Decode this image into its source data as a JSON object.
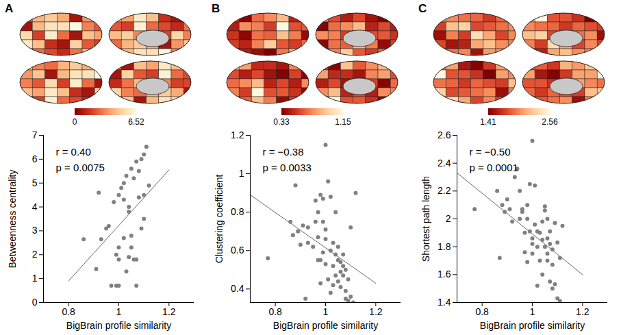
{
  "chart_data": [
    {
      "type": "scatter",
      "panel": "A",
      "x_label": "BigBrain profile similarity",
      "y_label": "Betweenness centrality",
      "xlim": [
        0.7,
        1.3
      ],
      "xticks": [
        0.8,
        1,
        1.2
      ],
      "ylim": [
        0,
        7
      ],
      "yticks": [
        0,
        1,
        2,
        3,
        4,
        5,
        6,
        7
      ],
      "color": "#808080",
      "x": [
        0.86,
        0.91,
        0.92,
        0.93,
        0.95,
        0.96,
        0.97,
        0.98,
        0.99,
        1.0,
        0.99,
        1.0,
        1.0,
        1.0,
        1.01,
        1.02,
        1.02,
        1.03,
        1.03,
        1.04,
        1.04,
        1.04,
        1.05,
        1.05,
        1.05,
        1.06,
        1.06,
        1.07,
        1.07,
        1.07,
        1.08,
        1.08,
        1.09,
        1.09,
        1.1,
        1.1,
        1.1,
        1.11,
        1.12,
        1.02
      ],
      "y": [
        2.65,
        1.4,
        4.6,
        2.65,
        3.1,
        3.2,
        0.7,
        4.2,
        0.7,
        0.7,
        2.0,
        2.3,
        1.8,
        4.5,
        4.8,
        5.0,
        4.3,
        1.3,
        5.3,
        1.9,
        3.8,
        4.0,
        2.3,
        5.6,
        2.8,
        1.8,
        5.2,
        5.9,
        0.7,
        1.8,
        5.5,
        4.4,
        6.0,
        3.1,
        4.5,
        3.5,
        6.2,
        6.52,
        4.9,
        2.7
      ],
      "fit": {
        "x": [
          0.8,
          1.2
        ],
        "y": [
          0.9,
          5.55
        ]
      },
      "annotations": [
        "r = 0.40",
        "p = 0.0075"
      ],
      "colorbar": {
        "range": [
          0,
          6.52
        ],
        "ticks": [
          0,
          6.52
        ]
      }
    },
    {
      "type": "scatter",
      "panel": "B",
      "x_label": "BigBrain profile similarity",
      "y_label": "Clustering coefficient",
      "xlim": [
        0.7,
        1.3
      ],
      "xticks": [
        0.8,
        1,
        1.2
      ],
      "ylim": [
        0.33,
        1.2
      ],
      "yticks": [
        0.4,
        0.6,
        0.8,
        1,
        1.2
      ],
      "color": "#808080",
      "x": [
        0.77,
        0.86,
        0.87,
        0.88,
        0.89,
        0.9,
        0.91,
        0.92,
        0.93,
        0.93,
        0.95,
        0.96,
        0.96,
        0.97,
        0.97,
        0.97,
        0.98,
        0.98,
        0.98,
        0.99,
        0.99,
        0.99,
        1.0,
        1.0,
        1.0,
        1.0,
        1.01,
        1.01,
        1.02,
        1.02,
        1.02,
        1.03,
        1.03,
        1.04,
        1.04,
        1.04,
        1.05,
        1.05,
        1.05,
        1.06,
        1.06,
        1.06,
        1.07,
        1.07,
        1.07,
        1.08,
        1.08,
        1.08,
        1.09,
        1.09,
        1.1,
        1.1,
        1.11,
        1.12,
        1.03
      ],
      "y": [
        0.56,
        0.75,
        0.68,
        0.94,
        0.7,
        0.63,
        0.73,
        0.35,
        0.72,
        0.64,
        0.62,
        0.86,
        0.75,
        0.8,
        0.67,
        0.55,
        0.89,
        0.55,
        0.43,
        0.87,
        0.59,
        0.75,
        1.15,
        0.71,
        0.66,
        0.53,
        0.96,
        0.45,
        0.88,
        0.6,
        0.38,
        0.64,
        0.52,
        0.8,
        0.58,
        0.47,
        0.62,
        0.55,
        0.44,
        0.54,
        0.49,
        0.41,
        0.58,
        0.52,
        0.47,
        0.39,
        0.35,
        0.5,
        0.34,
        0.45,
        0.36,
        0.72,
        0.33,
        0.9,
        0.42
      ],
      "fit": {
        "x": [
          0.7,
          1.2
        ],
        "y": [
          0.89,
          0.43
        ]
      },
      "annotations": [
        "r = −0.38",
        "p = 0.0033"
      ],
      "colorbar": {
        "range": [
          0.33,
          1.15
        ],
        "ticks": [
          0.33,
          1.15
        ]
      }
    },
    {
      "type": "scatter",
      "panel": "C",
      "x_label": "BigBrain profile similarity",
      "y_label": "Shortest path length",
      "xlim": [
        0.7,
        1.3
      ],
      "xticks": [
        0.8,
        1,
        1.2
      ],
      "ylim": [
        1.4,
        2.6
      ],
      "yticks": [
        1.4,
        1.6,
        1.8,
        2,
        2.2,
        2.4,
        2.6
      ],
      "color": "#808080",
      "x": [
        0.77,
        0.86,
        0.87,
        0.88,
        0.89,
        0.9,
        0.91,
        0.92,
        0.93,
        0.94,
        0.95,
        0.95,
        0.96,
        0.96,
        0.97,
        0.97,
        0.98,
        0.98,
        0.99,
        0.99,
        1.0,
        1.0,
        1.0,
        1.0,
        1.01,
        1.01,
        1.02,
        1.02,
        1.03,
        1.03,
        1.04,
        1.04,
        1.05,
        1.05,
        1.05,
        1.06,
        1.06,
        1.06,
        1.07,
        1.07,
        1.07,
        1.08,
        1.08,
        1.08,
        1.09,
        1.09,
        1.1,
        1.1,
        1.11,
        1.11,
        1.12,
        1.04,
        1.02,
        0.98,
        1.06
      ],
      "y": [
        2.07,
        2.2,
        1.72,
        2.1,
        2.05,
        2.14,
        2.07,
        1.98,
        2.3,
        2.36,
        2.2,
        2.0,
        2.05,
        2.07,
        1.9,
        1.76,
        2.1,
        2.0,
        1.91,
        2.25,
        2.56,
        1.86,
        1.82,
        1.75,
        1.96,
        2.24,
        1.91,
        1.8,
        1.7,
        1.9,
        1.98,
        1.85,
        2.09,
        2.06,
        1.8,
        1.86,
        2.0,
        1.75,
        1.91,
        1.82,
        1.55,
        1.67,
        1.78,
        1.5,
        1.53,
        1.97,
        1.83,
        1.43,
        1.41,
        1.72,
        1.95,
        1.6,
        1.52,
        1.69,
        1.7
      ],
      "fit": {
        "x": [
          0.7,
          1.2
        ],
        "y": [
          2.33,
          1.6
        ]
      },
      "annotations": [
        "r = −0.50",
        "p = 0.0001"
      ],
      "colorbar": {
        "range": [
          1.41,
          2.56
        ],
        "ticks": [
          1.41,
          2.56
        ]
      }
    }
  ]
}
